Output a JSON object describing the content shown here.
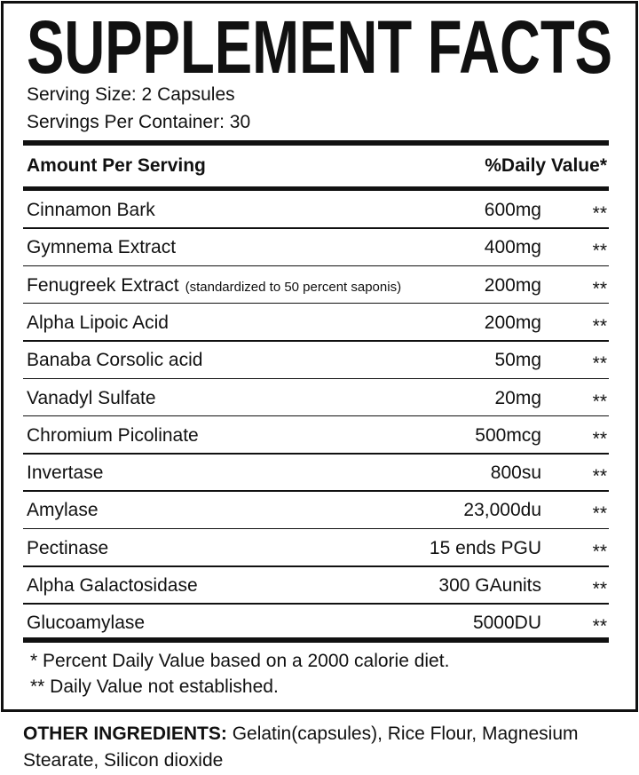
{
  "title": "SUPPLEMENT FACTS",
  "serving": [
    "Serving Size: 2 Capsules",
    "Servings Per Container: 30"
  ],
  "table": {
    "header": {
      "name": "Amount Per Serving",
      "dv": "%Daily Value*"
    },
    "rows": [
      {
        "name": "Cinnamon Bark",
        "amount": "600mg",
        "dv": "**"
      },
      {
        "name": "Gymnema Extract",
        "amount": "400mg",
        "dv": "**"
      },
      {
        "name": "Fenugreek Extract",
        "note": "(standardized to 50 percent saponis)",
        "amount": "200mg",
        "dv": "**"
      },
      {
        "name": "Alpha Lipoic Acid",
        "amount": "200mg",
        "dv": "**"
      },
      {
        "name": "Banaba Corsolic acid",
        "amount": "50mg",
        "dv": "**"
      },
      {
        "name": "Vanadyl Sulfate",
        "amount": "20mg",
        "dv": "**"
      },
      {
        "name": "Chromium Picolinate",
        "amount": "500mcg",
        "dv": "**"
      },
      {
        "name": "Invertase",
        "amount": "800su",
        "dv": "**"
      },
      {
        "name": "Amylase",
        "amount": "23,000du",
        "dv": "**"
      },
      {
        "name": "Pectinase",
        "amount": "15 ends PGU",
        "dv": "**"
      },
      {
        "name": "Alpha Galactosidase",
        "amount": "300 GAunits",
        "dv": "**"
      },
      {
        "name": "Glucoamylase",
        "amount": "5000DU",
        "dv": "**"
      }
    ]
  },
  "footnotes": [
    "* Percent Daily Value based on a 2000 calorie diet.",
    "** Daily Value not established."
  ],
  "other": {
    "label": "OTHER INGREDIENTS:",
    "text": "Gelatin(capsules), Rice Flour, Magnesium Stearate, Silicon dioxide"
  }
}
